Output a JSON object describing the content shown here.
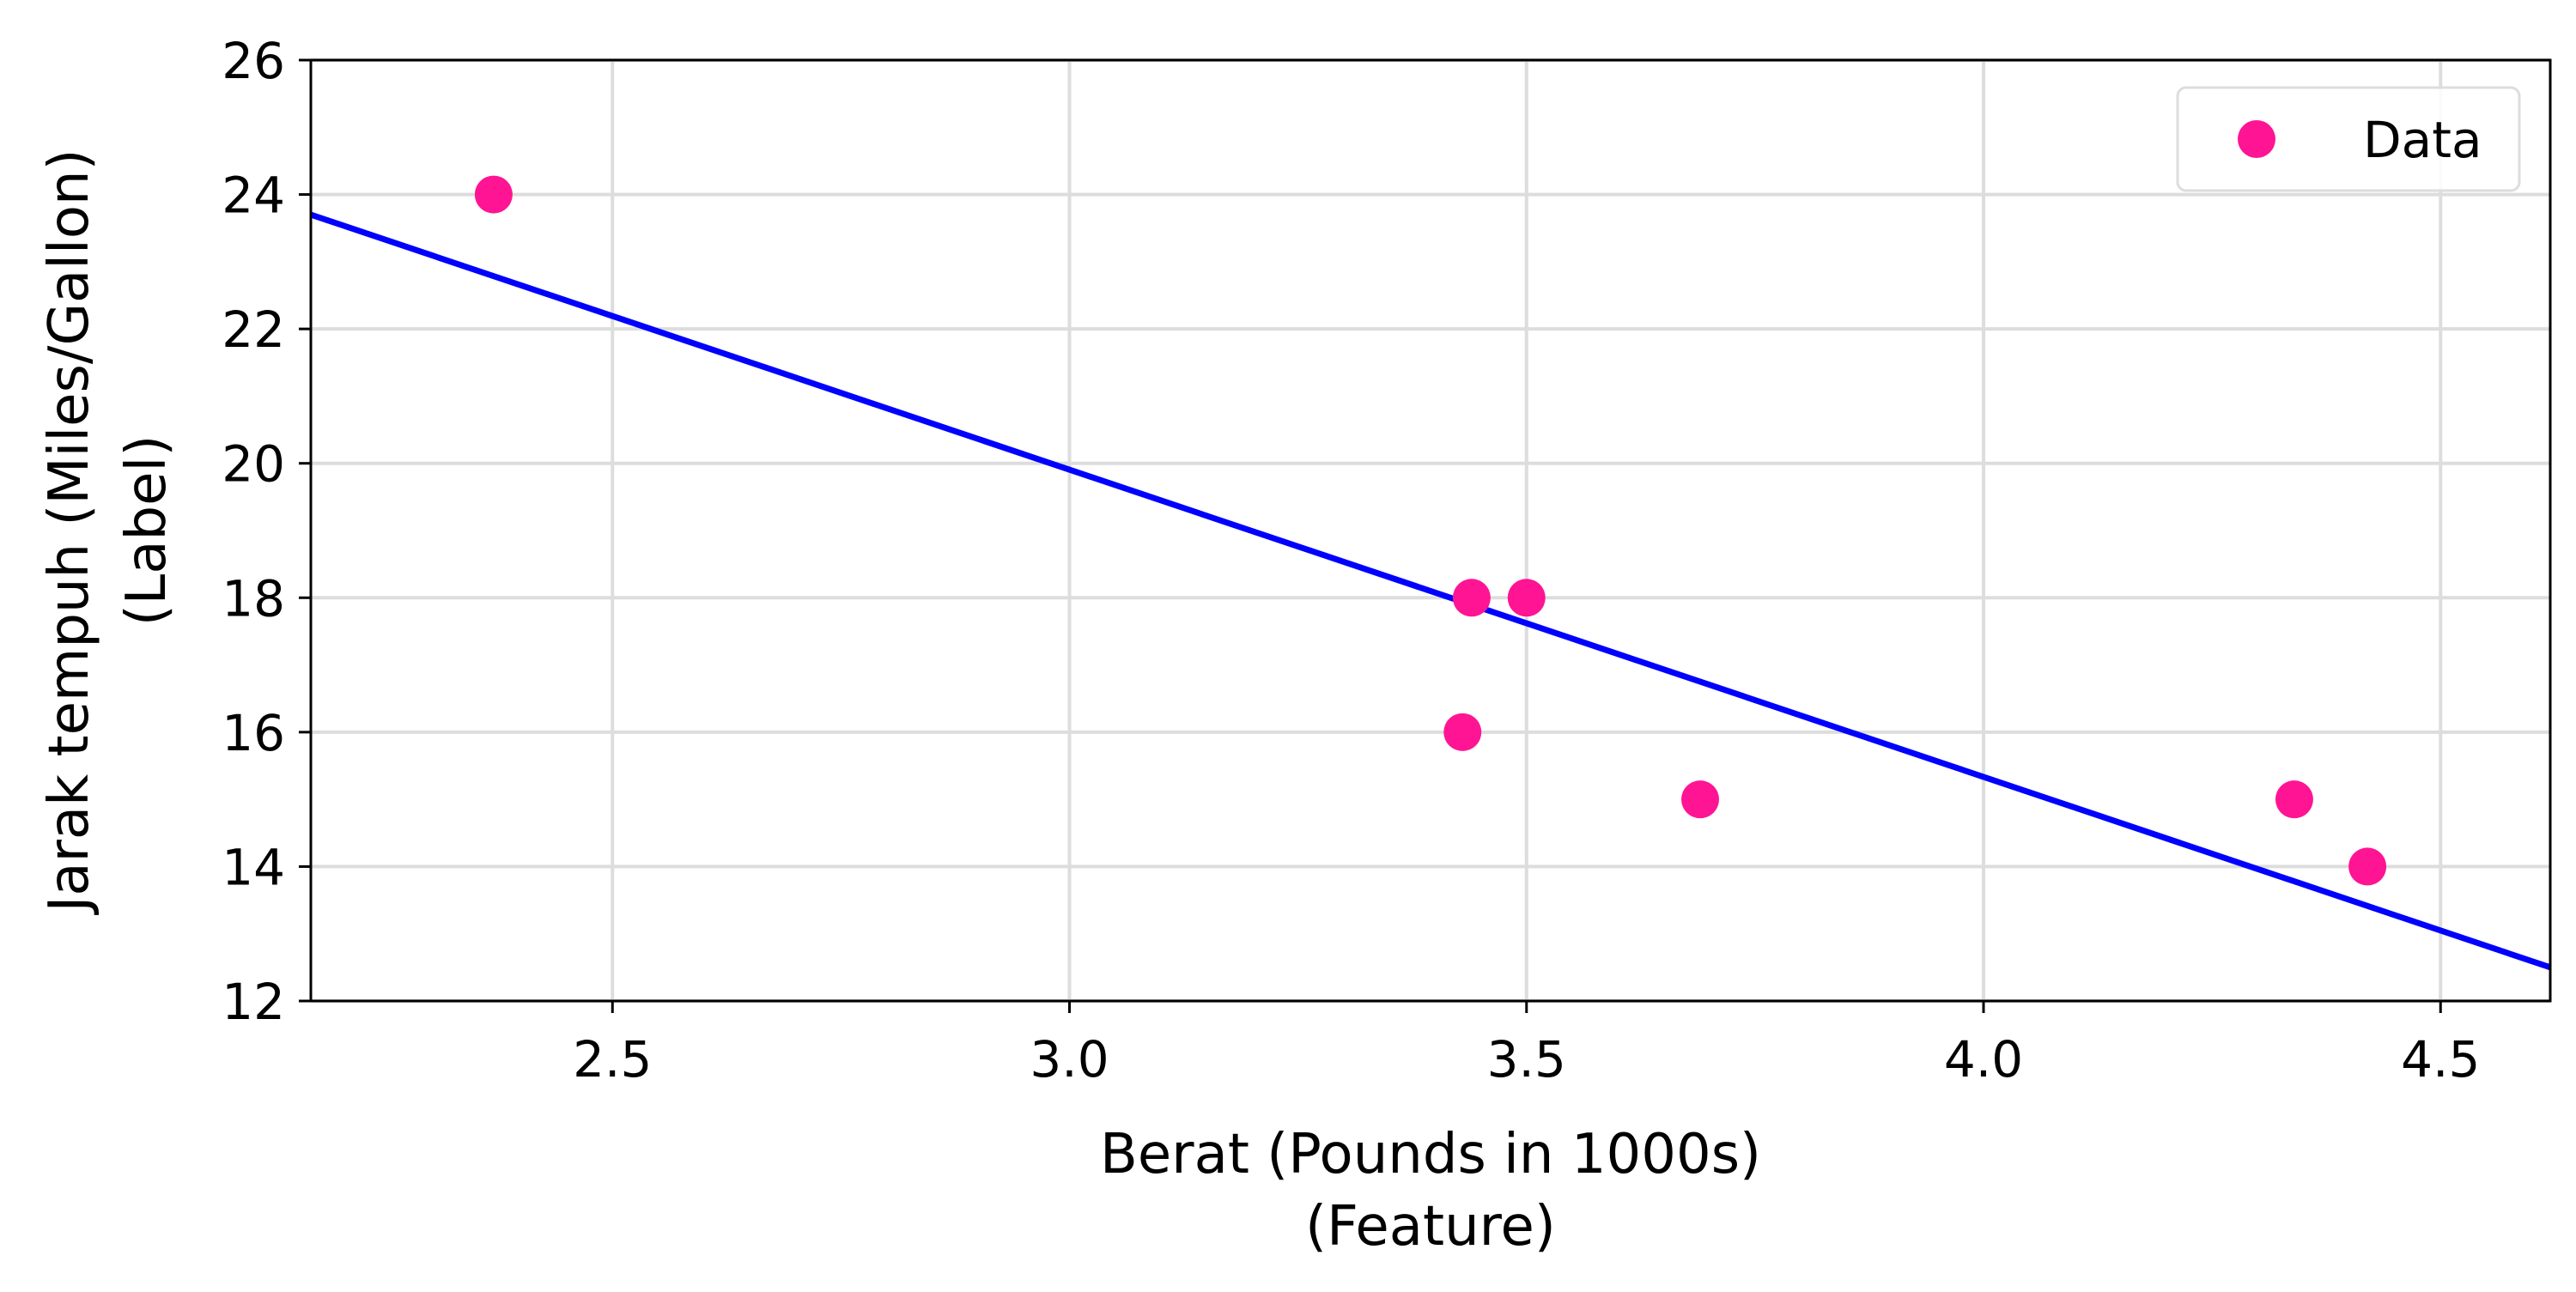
{
  "chart_data": {
    "type": "scatter",
    "xlabel": [
      "Berat (Pounds in 1000s)",
      "(Feature)"
    ],
    "ylabel": [
      "Jarak tempuh (Miles/Gallon)",
      "(Label)"
    ],
    "xlim": [
      2.17,
      4.62
    ],
    "ylim": [
      12,
      26
    ],
    "xticks": [
      2.5,
      3.0,
      3.5,
      4.0,
      4.5
    ],
    "xtick_labels": [
      "2.5",
      "3.0",
      "3.5",
      "4.0",
      "4.5"
    ],
    "yticks": [
      12,
      14,
      16,
      18,
      20,
      22,
      24,
      26
    ],
    "ytick_labels": [
      "12",
      "14",
      "16",
      "18",
      "20",
      "22",
      "24",
      "26"
    ],
    "grid": true,
    "legend_position": "top-right",
    "series": [
      {
        "name": "Data",
        "kind": "scatter",
        "color": "#ff1493",
        "x": [
          2.37,
          3.43,
          3.44,
          3.5,
          3.69,
          4.34,
          4.42
        ],
        "y": [
          24,
          16,
          18,
          18,
          15,
          15,
          14
        ]
      },
      {
        "kind": "line",
        "color": "#0000ff",
        "x": [
          2.17,
          4.62
        ],
        "y": [
          23.7,
          12.5
        ]
      }
    ]
  }
}
